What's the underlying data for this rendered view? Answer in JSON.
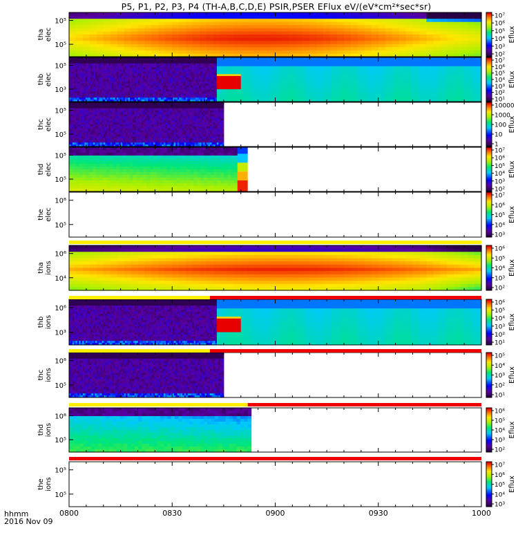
{
  "title": "P5, P1, P2, P3, P4 (TH-A,B,C,D,E) PSIR,PSER EFlux eV/(eV*cm²*sec*sr)",
  "footer": {
    "format": "hhmm",
    "date": "2016 Nov 09"
  },
  "chart_data": {
    "type": "heatmap",
    "x_ticks": [
      "0800",
      "0830",
      "0900",
      "0930",
      "1000"
    ],
    "xlim": [
      "0800",
      "1000"
    ],
    "y_scale": "log",
    "colorbar_label": "Eflux",
    "panels": [
      {
        "id": "tha-elec",
        "ylabel": "tha elec",
        "y_ticks": [
          "10⁵",
          "10⁵"
        ],
        "cbar_ticks": [
          "10⁷",
          "10⁶",
          "10⁵",
          "10⁴",
          "10³",
          "10²"
        ],
        "pattern": "hot",
        "data_end": "1000"
      },
      {
        "id": "thb-elec",
        "ylabel": "thb elec",
        "y_ticks": [
          "10⁵",
          "10³"
        ],
        "cbar_ticks": [
          "10⁷",
          "10⁶",
          "10⁵",
          "10⁴",
          "10³",
          "10²",
          "10¹"
        ],
        "pattern": "noisy-then-flat",
        "data_end": "1000",
        "noise_end": "0843",
        "red_block": [
          "0843",
          "0850"
        ]
      },
      {
        "id": "thc-elec",
        "ylabel": "thc elec",
        "y_ticks": [
          "10⁵",
          "10⁵"
        ],
        "cbar_ticks": [
          "10000",
          "1000",
          "100",
          "10",
          "1"
        ],
        "pattern": "noisy",
        "data_end": "0845"
      },
      {
        "id": "thd-elec",
        "ylabel": "thd elec",
        "y_ticks": [
          "10⁵",
          "10⁵"
        ],
        "cbar_ticks": [
          "10⁷",
          "10⁶",
          "10⁵",
          "10⁴",
          "10³",
          "10²"
        ],
        "pattern": "green-gradient",
        "data_end": "0852"
      },
      {
        "id": "the-elec",
        "ylabel": "the elec",
        "y_ticks": [
          "10⁶",
          "10⁵"
        ],
        "cbar_ticks": [
          "10⁷",
          "10⁶",
          "10⁵",
          "10⁴",
          "10³"
        ],
        "pattern": "empty"
      },
      {
        "id": "tha-ions",
        "ylabel": "tha ions",
        "y_ticks": [
          "10⁶",
          "10⁴"
        ],
        "cbar_ticks": [
          "10⁶",
          "10⁵",
          "10⁴",
          "10³",
          "10²"
        ],
        "pattern": "hot-ions",
        "data_end": "1000"
      },
      {
        "id": "thb-ions",
        "ylabel": "thb ions",
        "y_ticks": [
          "10⁶",
          "10³"
        ],
        "cbar_ticks": [
          "10⁶",
          "10⁵",
          "10⁴",
          "10³",
          "10²",
          "10¹"
        ],
        "pattern": "noisy-then-flat",
        "data_end": "1000",
        "noise_end": "0843",
        "red_block": [
          "0843",
          "0850"
        ]
      },
      {
        "id": "thc-ions",
        "ylabel": "thc ions",
        "y_ticks": [
          "10⁶",
          "10⁵"
        ],
        "cbar_ticks": [
          "10⁵",
          "10⁴",
          "10³",
          "10²",
          "10¹"
        ],
        "pattern": "noisy",
        "data_end": "0845"
      },
      {
        "id": "thd-ions",
        "ylabel": "thd ions",
        "y_ticks": [
          "10⁶",
          "10⁵"
        ],
        "cbar_ticks": [
          "10⁶",
          "10⁵",
          "10⁴",
          "10³",
          "10²"
        ],
        "pattern": "cyan-gradient",
        "data_end": "0853"
      },
      {
        "id": "the-ions",
        "ylabel": "the ions",
        "y_ticks": [
          "10⁵",
          "10⁵"
        ],
        "cbar_ticks": [
          "10⁷",
          "10⁶",
          "10⁵",
          "10⁴",
          "10³"
        ],
        "pattern": "empty"
      }
    ],
    "status_bars": [
      {
        "after_panel": "the-elec",
        "segments": [
          {
            "from": "0800",
            "to": "1000",
            "color": "#ffee00"
          }
        ]
      },
      {
        "after_panel": "tha-ions",
        "segments": [
          {
            "from": "0800",
            "to": "0841",
            "color": "#ffee00"
          },
          {
            "from": "0841",
            "to": "1000",
            "color": "#ee0000"
          }
        ]
      },
      {
        "after_panel": "thb-ions",
        "segments": [
          {
            "from": "0800",
            "to": "0841",
            "color": "#ffee00"
          },
          {
            "from": "0841",
            "to": "1000",
            "color": "#ee0000"
          }
        ]
      },
      {
        "after_panel": "thc-ions",
        "segments": [
          {
            "from": "0800",
            "to": "0852",
            "color": "#ffee00"
          },
          {
            "from": "0852",
            "to": "1000",
            "color": "#ee0000"
          }
        ]
      },
      {
        "after_panel": "thd-ions",
        "segments": [
          {
            "from": "0800",
            "to": "1000",
            "color": "#ee0000"
          }
        ]
      }
    ]
  }
}
